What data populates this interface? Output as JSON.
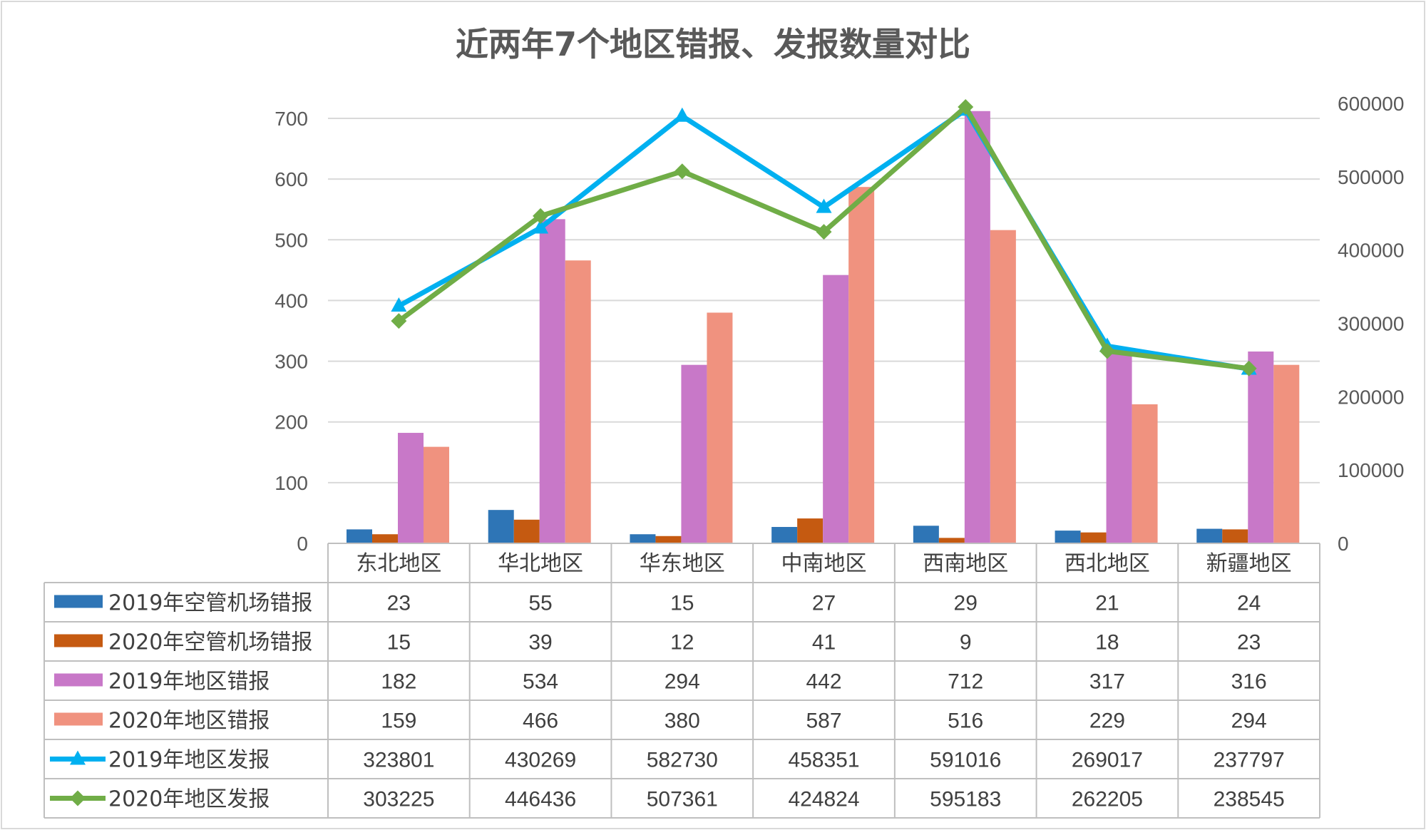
{
  "chart_data": {
    "type": "bar",
    "title": "近两年7个地区错报、发报数量对比",
    "categories": [
      "东北地区",
      "华北地区",
      "华东地区",
      "中南地区",
      "西南地区",
      "西北地区",
      "新疆地区"
    ],
    "y_left": {
      "min": 0,
      "max": 700,
      "ticks": [
        0,
        100,
        200,
        300,
        400,
        500,
        600,
        700
      ]
    },
    "y_right": {
      "min": 0,
      "max": 600000,
      "ticks": [
        0,
        100000,
        200000,
        300000,
        400000,
        500000,
        600000
      ]
    },
    "grid": true,
    "legend": "data-table-left",
    "series": [
      {
        "name": "2019年空管机场错报",
        "type": "bar",
        "axis": "left",
        "color": "#2E75B6",
        "values": [
          23,
          55,
          15,
          27,
          29,
          21,
          24
        ]
      },
      {
        "name": "2020年空管机场错报",
        "type": "bar",
        "axis": "left",
        "color": "#C55A11",
        "values": [
          15,
          39,
          12,
          41,
          9,
          18,
          23
        ]
      },
      {
        "name": "2019年地区错报",
        "type": "bar",
        "axis": "left",
        "color": "#C878C8",
        "values": [
          182,
          534,
          294,
          442,
          712,
          317,
          316
        ]
      },
      {
        "name": "2020年地区错报",
        "type": "bar",
        "axis": "left",
        "color": "#F0927F",
        "values": [
          159,
          466,
          380,
          587,
          516,
          229,
          294
        ]
      },
      {
        "name": "2019年地区发报",
        "type": "line",
        "axis": "right",
        "color": "#00B0F0",
        "marker": "triangle",
        "values": [
          323801,
          430269,
          582730,
          458351,
          591016,
          269017,
          237797
        ]
      },
      {
        "name": "2020年地区发报",
        "type": "line",
        "axis": "right",
        "color": "#70AD47",
        "marker": "diamond",
        "values": [
          303225,
          446436,
          507361,
          424824,
          595183,
          262205,
          238545
        ]
      }
    ]
  }
}
